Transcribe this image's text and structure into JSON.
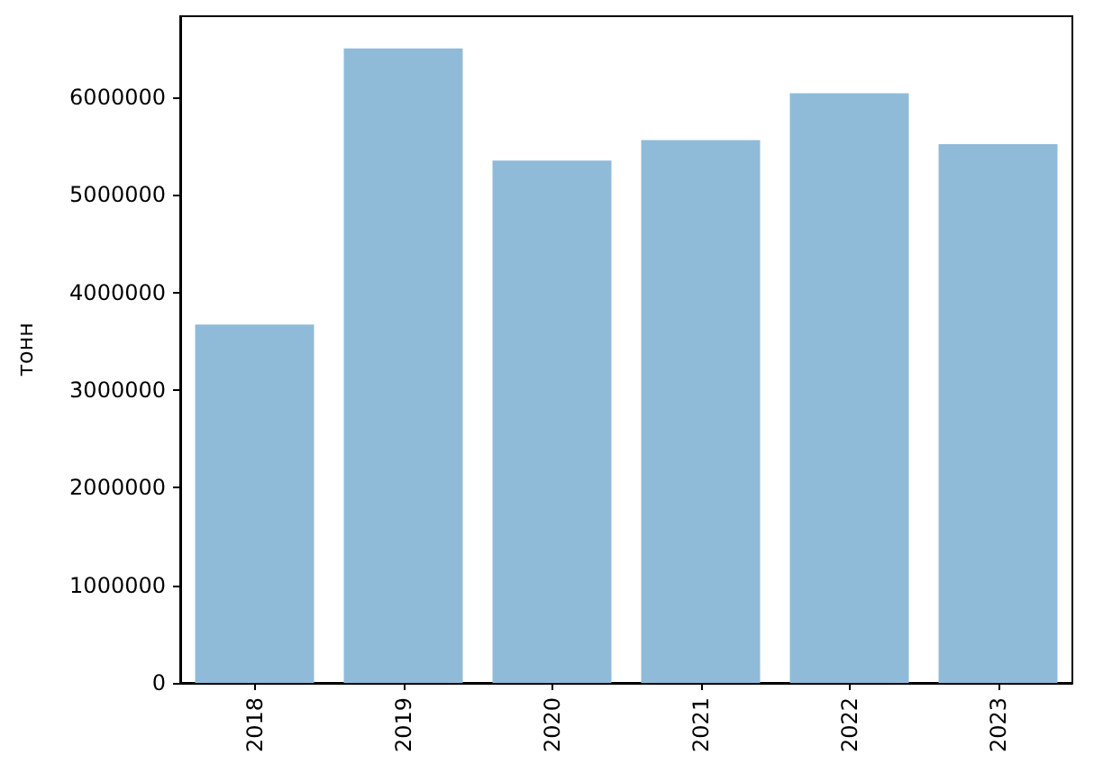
{
  "chart_data": {
    "type": "bar",
    "ylabel": "тонн",
    "categories": [
      "2018",
      "2019",
      "2020",
      "2021",
      "2022",
      "2023"
    ],
    "values": [
      3670000,
      6500000,
      5350000,
      5560000,
      6040000,
      5520000
    ],
    "color": "#8fbbd9",
    "ylim": [
      0,
      6830000
    ],
    "yticks": [
      0,
      1000000,
      2000000,
      3000000,
      4000000,
      5000000,
      6000000
    ]
  }
}
